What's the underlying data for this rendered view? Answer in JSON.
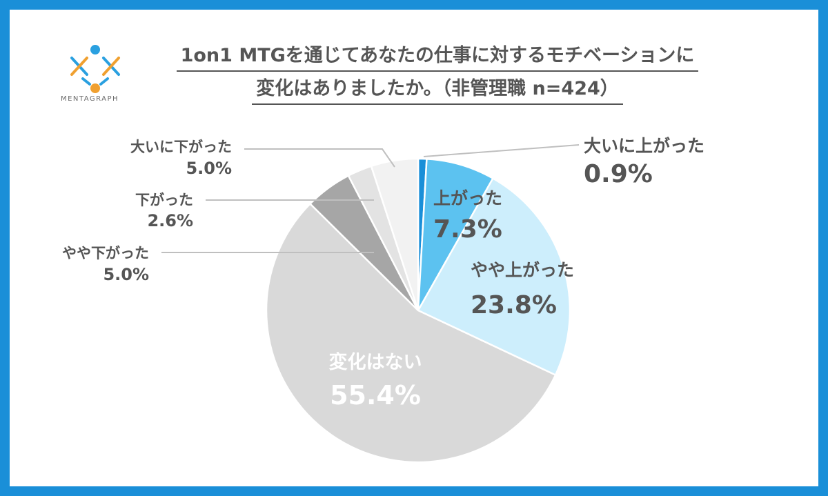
{
  "brand": {
    "name": "MENTAGRAPH",
    "logo_icon": "mentagraph-logo-icon"
  },
  "chart_data": {
    "type": "pie",
    "title_lines": [
      "1on1 MTGを通じてあなたの仕事に対するモチベーションに",
      "変化はありましたか。（非管理職 n=424）"
    ],
    "start": "top",
    "direction": "clockwise",
    "slices": [
      {
        "label": "大いに上がった",
        "value": 0.9,
        "value_label": "0.9%",
        "color": "#1a8fd8"
      },
      {
        "label": "上がった",
        "value": 7.3,
        "value_label": "7.3%",
        "color": "#5cc2f0"
      },
      {
        "label": "やや上がった",
        "value": 23.8,
        "value_label": "23.8%",
        "color": "#cdeefc"
      },
      {
        "label": "変化はない",
        "value": 55.4,
        "value_label": "55.4%",
        "color": "#d9d9d9"
      },
      {
        "label": "やや下がった",
        "value": 5.0,
        "value_label": "5.0%",
        "color": "#a6a6a6"
      },
      {
        "label": "下がった",
        "value": 2.6,
        "value_label": "2.6%",
        "color": "#e3e3e3"
      },
      {
        "label": "大いに下がった",
        "value": 5.0,
        "value_label": "5.0%",
        "color": "#f2f2f2"
      }
    ]
  }
}
